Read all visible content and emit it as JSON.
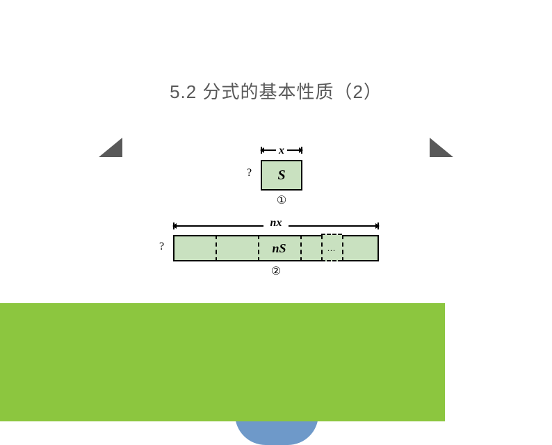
{
  "title": "5.2 分式的基本性质（2）",
  "fig1": {
    "top_label": "x",
    "left_label": "?",
    "content": "S",
    "caption": "①",
    "rect_fill": "#c9e1c0",
    "rect_border": "#000000"
  },
  "fig2": {
    "top_label": "nx",
    "left_label": "?",
    "content": "nS",
    "ellipsis": "…",
    "caption": "②",
    "rect_fill": "#c9e1c0",
    "rect_border": "#000000",
    "segments": 5
  },
  "decor": {
    "triangle_color": "#595959",
    "blob_color": "#6e99c9",
    "wedge_color": "#8cc63f"
  }
}
